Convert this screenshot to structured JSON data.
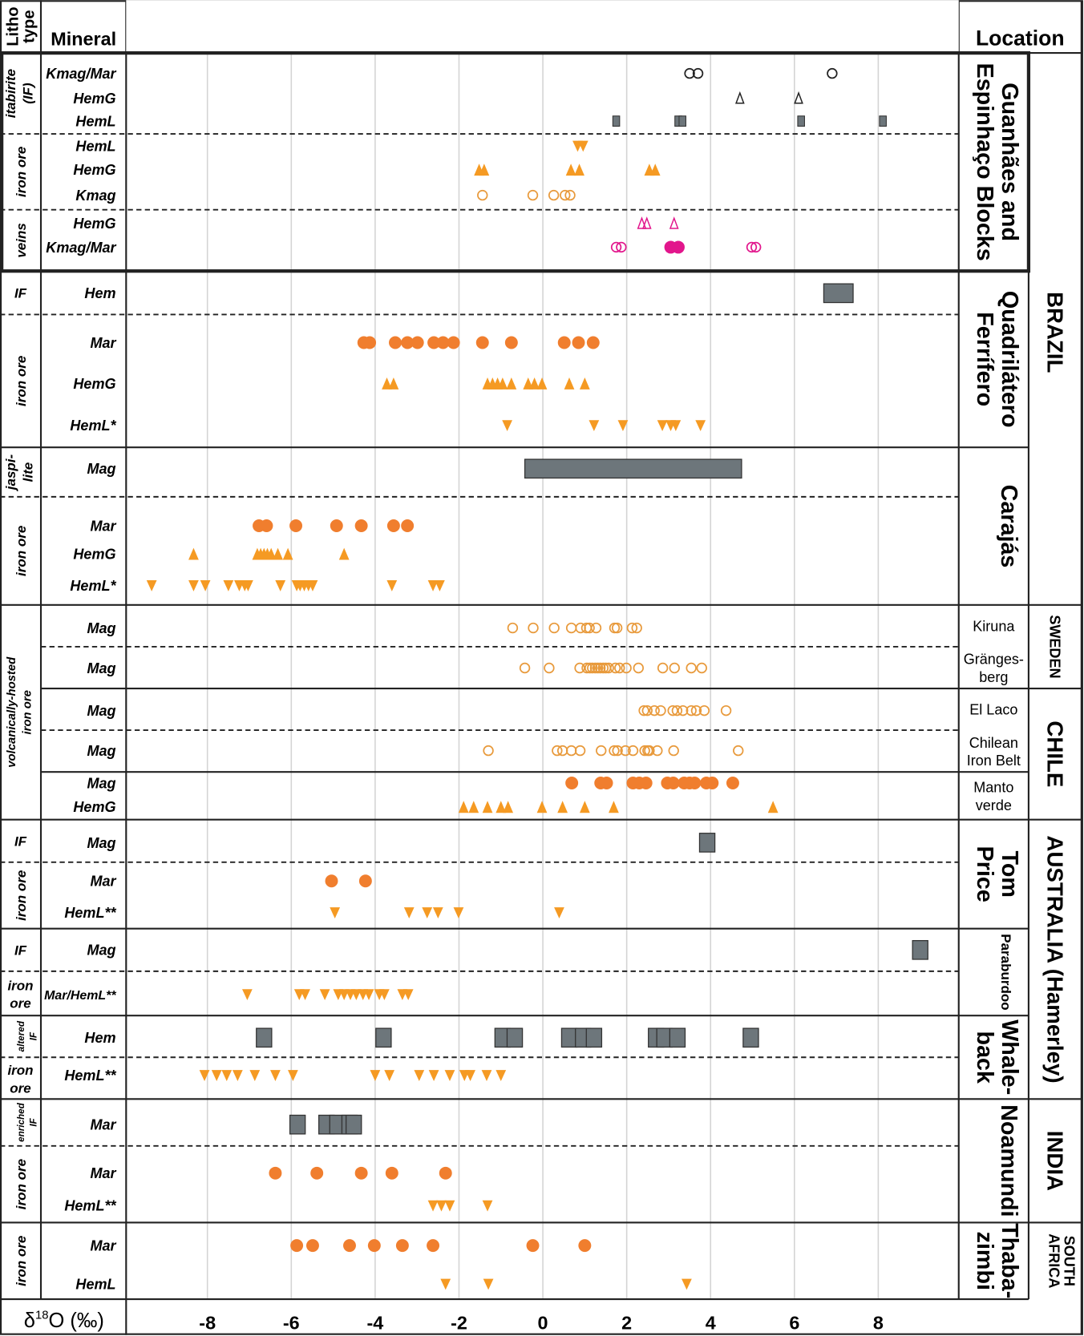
{
  "chart_data": {
    "type": "scatter",
    "title": "",
    "xlabel": "δ18O (‰)",
    "xlabel_parts": {
      "delta": "δ",
      "sup": "18",
      "rest": "O (‰)"
    },
    "xlim": [
      -10,
      10
    ],
    "xticks": [
      -8,
      -6,
      -4,
      -2,
      0,
      2,
      4,
      6,
      8
    ],
    "xtick_labels": [
      "-8",
      "-6",
      "-4",
      "-2",
      "0",
      "2",
      "4",
      "6",
      "8"
    ],
    "grid": "vertical",
    "legend": "none",
    "headers": {
      "litho": [
        "Litho",
        "type"
      ],
      "mineral": "Mineral",
      "location": "Location"
    },
    "colors": {
      "orange_circle": "#f07e2e",
      "orange_triangle": "#f59a23",
      "orange_open": "#e89a3c",
      "gray": "#6d767b",
      "magenta": "#e2168c",
      "black": "#222222"
    },
    "lithos": [
      {
        "label": [
          "itabirite",
          "(IF)"
        ],
        "rows": [
          {
            "mineral": "Kmag/Mar",
            "series": [
              {
                "marker": "circle-open",
                "color": "black",
                "values": [
                  3.5,
                  3.7,
                  6.9
                ]
              }
            ]
          },
          {
            "mineral": "HemG",
            "series": [
              {
                "marker": "triangle-up-open",
                "color": "black",
                "values": [
                  4.7,
                  6.1
                ]
              }
            ]
          },
          {
            "mineral": "HemL",
            "series": [
              {
                "marker": "rect-small",
                "color": "gray",
                "values": [
                  1.75,
                  3.23,
                  3.33,
                  6.16,
                  8.11
                ]
              }
            ]
          }
        ]
      },
      {
        "label": [
          "iron ore"
        ],
        "rows": [
          {
            "mineral": "HemL",
            "series": [
              {
                "marker": "triangle-down",
                "color": "orange_triangle",
                "values": [
                  0.83,
                  0.96
                ]
              }
            ]
          },
          {
            "mineral": "HemG",
            "series": [
              {
                "marker": "triangle-up",
                "color": "orange_triangle",
                "values": [
                  -1.52,
                  -1.4,
                  0.67,
                  0.87,
                  2.54,
                  2.68
                ]
              }
            ]
          },
          {
            "mineral": "Kmag",
            "series": [
              {
                "marker": "circle-open",
                "color": "orange_open",
                "values": [
                  -1.44,
                  -0.24,
                  0.26,
                  0.53,
                  0.65
                ]
              }
            ]
          }
        ]
      },
      {
        "label": [
          "veins"
        ],
        "rows": [
          {
            "mineral": "HemG",
            "series": [
              {
                "marker": "triangle-up-open",
                "color": "magenta",
                "values": [
                  2.36,
                  2.48,
                  3.13
                ]
              }
            ]
          },
          {
            "mineral": "Kmag/Mar",
            "series": [
              {
                "marker": "circle-open",
                "color": "magenta",
                "values": [
                  1.75,
                  1.87,
                  4.98,
                  5.08
                ]
              },
              {
                "marker": "circle-filled",
                "color": "magenta",
                "values": [
                  3.05,
                  3.23
                ]
              }
            ]
          }
        ]
      },
      {
        "label": [
          "IF"
        ],
        "rows": [
          {
            "mineral": "Hem",
            "series": [
              {
                "marker": "bar-range",
                "color": "gray",
                "ranges": [
                  [
                    6.7,
                    7.4
                  ]
                ]
              }
            ]
          }
        ]
      },
      {
        "label": [
          "iron ore"
        ],
        "rows": [
          {
            "mineral": "Mar",
            "series": [
              {
                "marker": "circle-filled",
                "color": "orange_circle",
                "values": [
                  -4.27,
                  -4.13,
                  -3.52,
                  -3.23,
                  -2.99,
                  -2.6,
                  -2.38,
                  -2.13,
                  -1.44,
                  -0.75,
                  0.51,
                  0.85,
                  1.2
                ]
              }
            ]
          },
          {
            "mineral": "HemG",
            "series": [
              {
                "marker": "triangle-up",
                "color": "orange_triangle",
                "values": [
                  -3.72,
                  -3.56,
                  -1.32,
                  -1.2,
                  -1.08,
                  -0.96,
                  -0.75,
                  -0.35,
                  -0.2,
                  -0.02,
                  0.63,
                  1.0
                ]
              }
            ]
          },
          {
            "mineral": "HemL*",
            "series": [
              {
                "marker": "triangle-down",
                "color": "orange_triangle",
                "values": [
                  -0.85,
                  1.22,
                  1.91,
                  2.85,
                  3.05,
                  3.17,
                  3.76
                ]
              }
            ]
          }
        ]
      },
      {
        "label": [
          "jaspi-",
          "lite"
        ],
        "rows": [
          {
            "mineral": "Mag",
            "series": [
              {
                "marker": "bar-range",
                "color": "gray",
                "ranges": [
                  [
                    -0.43,
                    4.74
                  ]
                ]
              }
            ]
          }
        ]
      },
      {
        "label": [
          "iron ore"
        ],
        "rows": [
          {
            "mineral": "Mar",
            "series": [
              {
                "marker": "circle-filled",
                "color": "orange_circle",
                "values": [
                  -6.77,
                  -6.59,
                  -5.89,
                  -4.92,
                  -4.33,
                  -3.56,
                  -3.23
                ]
              }
            ]
          },
          {
            "mineral": "HemG",
            "series": [
              {
                "marker": "triangle-up",
                "color": "orange_triangle",
                "values": [
                  -8.33,
                  -6.81,
                  -6.73,
                  -6.65,
                  -6.57,
                  -6.48,
                  -6.32,
                  -6.08,
                  -4.74
                ]
              }
            ]
          },
          {
            "mineral": "HemL*",
            "series": [
              {
                "marker": "triangle-down",
                "color": "orange_triangle",
                "values": [
                  -9.33,
                  -8.33,
                  -8.05,
                  -7.5,
                  -7.24,
                  -7.11,
                  -7.03,
                  -6.26,
                  -5.87,
                  -5.79,
                  -5.69,
                  -5.59,
                  -5.49,
                  -3.6,
                  -2.62,
                  -2.46
                ]
              }
            ]
          }
        ]
      },
      {
        "label": [
          "volcanically-hosted",
          "iron ore"
        ],
        "rows": [
          {
            "mineral": "Mag",
            "series": [
              {
                "marker": "circle-open",
                "color": "orange_open",
                "values": [
                  -0.72,
                  -0.23,
                  0.27,
                  0.68,
                  0.9,
                  1.04,
                  1.11,
                  1.27,
                  1.71,
                  1.77,
                  2.13,
                  2.24
                ]
              }
            ]
          },
          {
            "mineral": "Mag",
            "series": [
              {
                "marker": "circle-open",
                "color": "orange_open",
                "values": [
                  -0.43,
                  0.15,
                  0.88,
                  1.05,
                  1.12,
                  1.18,
                  1.25,
                  1.31,
                  1.37,
                  1.44,
                  1.5,
                  1.57,
                  1.73,
                  1.83,
                  1.99,
                  2.28,
                  2.86,
                  3.14,
                  3.54,
                  3.79
                ]
              }
            ]
          },
          {
            "mineral": "Mag",
            "series": [
              {
                "marker": "circle-open",
                "color": "orange_open",
                "values": [
                  2.41,
                  2.49,
                  2.66,
                  2.81,
                  3.1,
                  3.2,
                  3.34,
                  3.54,
                  3.66,
                  3.85,
                  4.37
                ]
              }
            ]
          },
          {
            "mineral": "Mag",
            "series": [
              {
                "marker": "circle-open",
                "color": "orange_open",
                "values": [
                  -1.3,
                  0.34,
                  0.47,
                  0.68,
                  0.89,
                  1.39,
                  1.7,
                  1.78,
                  1.97,
                  2.15,
                  2.43,
                  2.5,
                  2.54,
                  2.73,
                  3.12,
                  4.66
                ]
              }
            ]
          },
          {
            "mineral": "Mag",
            "series": [
              {
                "marker": "circle-filled",
                "color": "orange_circle",
                "values": [
                  0.69,
                  1.38,
                  1.52,
                  2.15,
                  2.3,
                  2.46,
                  2.97,
                  3.11,
                  3.37,
                  3.5,
                  3.62,
                  3.9,
                  4.04,
                  4.53
                ]
              }
            ]
          },
          {
            "mineral": "HemG",
            "series": [
              {
                "marker": "triangle-up",
                "color": "orange_triangle",
                "values": [
                  -1.89,
                  -1.65,
                  -1.32,
                  -1.0,
                  -0.83,
                  -0.02,
                  0.47,
                  1.0,
                  1.69,
                  5.49
                ]
              }
            ]
          }
        ]
      },
      {
        "label": [
          "IF"
        ],
        "rows": [
          {
            "mineral": "Mag",
            "series": [
              {
                "marker": "rect-large",
                "color": "gray",
                "values": [
                  3.92
                ]
              }
            ]
          }
        ]
      },
      {
        "label": [
          "iron ore"
        ],
        "rows": [
          {
            "mineral": "Mar",
            "series": [
              {
                "marker": "circle-filled",
                "color": "orange_circle",
                "values": [
                  -5.04,
                  -4.23
                ]
              }
            ]
          },
          {
            "mineral": "HemL**",
            "series": [
              {
                "marker": "triangle-down",
                "color": "orange_triangle",
                "values": [
                  -4.96,
                  -3.19,
                  -2.76,
                  -2.5,
                  -2.01,
                  0.39
                ]
              }
            ]
          }
        ]
      },
      {
        "label": [
          "IF"
        ],
        "rows": [
          {
            "mineral": "Mag",
            "series": [
              {
                "marker": "rect-large",
                "color": "gray",
                "values": [
                  9.0
                ]
              }
            ]
          }
        ]
      },
      {
        "label": [
          "iron",
          "ore"
        ],
        "rows": [
          {
            "mineral": "Mar/HemL**",
            "series": [
              {
                "marker": "triangle-down",
                "color": "orange_triangle",
                "values": [
                  -7.05,
                  -5.81,
                  -5.67,
                  -5.2,
                  -4.88,
                  -4.74,
                  -4.59,
                  -4.45,
                  -4.29,
                  -4.15,
                  -3.9,
                  -3.78,
                  -3.35,
                  -3.21
                ]
              }
            ]
          }
        ]
      },
      {
        "label": [
          "altered",
          "IF"
        ],
        "rows": [
          {
            "mineral": "Hem",
            "series": [
              {
                "marker": "rect-large",
                "color": "gray",
                "values": [
                  -6.65,
                  -3.8,
                  -0.96,
                  -0.67,
                  0.63,
                  0.96,
                  1.22,
                  2.7,
                  2.9,
                  3.21,
                  4.96
                ]
              }
            ]
          }
        ]
      },
      {
        "label": [
          "iron",
          "ore"
        ],
        "rows": [
          {
            "mineral": "HemL**",
            "series": [
              {
                "marker": "triangle-down",
                "color": "orange_triangle",
                "values": [
                  -8.07,
                  -7.78,
                  -7.54,
                  -7.28,
                  -6.87,
                  -6.38,
                  -5.96,
                  -4.0,
                  -3.66,
                  -2.95,
                  -2.6,
                  -2.22,
                  -1.87,
                  -1.73,
                  -1.34,
                  -1.0
                ]
              }
            ]
          }
        ]
      },
      {
        "label": [
          "enriched",
          "IF"
        ],
        "rows": [
          {
            "mineral": "Mar",
            "series": [
              {
                "marker": "rect-large",
                "color": "gray",
                "values": [
                  -5.85,
                  -5.16,
                  -4.9,
                  -4.61,
                  -4.51
                ]
              }
            ]
          }
        ]
      },
      {
        "label": [
          "iron ore"
        ],
        "rows": [
          {
            "mineral": "Mar",
            "series": [
              {
                "marker": "circle-filled",
                "color": "orange_circle",
                "values": [
                  -6.38,
                  -5.39,
                  -4.33,
                  -3.6,
                  -2.32
                ]
              }
            ]
          },
          {
            "mineral": "HemL**",
            "series": [
              {
                "marker": "triangle-down",
                "color": "orange_triangle",
                "values": [
                  -2.62,
                  -2.42,
                  -2.22,
                  -1.32
                ]
              }
            ]
          }
        ]
      },
      {
        "label": [
          "iron ore"
        ],
        "rows": [
          {
            "mineral": "Mar",
            "series": [
              {
                "marker": "circle-filled",
                "color": "orange_circle",
                "values": [
                  -5.87,
                  -5.49,
                  -4.61,
                  -4.02,
                  -3.35,
                  -2.62,
                  -0.24,
                  1.0
                ]
              }
            ]
          },
          {
            "mineral": "HemL",
            "series": [
              {
                "marker": "triangle-down",
                "color": "orange_triangle",
                "values": [
                  -2.32,
                  -1.3,
                  3.43
                ]
              }
            ]
          }
        ]
      }
    ],
    "locations": [
      {
        "lines": [
          "Guanhães and",
          "Espinhaço Blocks"
        ]
      },
      {
        "lines": [
          "Quadrilátero",
          "Ferrífero"
        ]
      },
      {
        "lines": [
          "Carajás"
        ]
      },
      {
        "lines": [
          "Kiruna"
        ]
      },
      {
        "lines": [
          "Gränges-",
          "berg"
        ]
      },
      {
        "lines": [
          "El Laco"
        ]
      },
      {
        "lines": [
          "Chilean",
          "Iron Belt"
        ]
      },
      {
        "lines": [
          "Manto",
          "verde"
        ]
      },
      {
        "lines": [
          "Tom",
          "Price"
        ]
      },
      {
        "lines": [
          "Paraburdoo"
        ]
      },
      {
        "lines": [
          "Whale-",
          "back"
        ]
      },
      {
        "lines": [
          "Noamundi"
        ]
      },
      {
        "lines": [
          "Thaba-",
          "zimbi"
        ]
      }
    ],
    "countries": [
      {
        "lines": [
          "BRAZIL"
        ]
      },
      {
        "lines": [
          "SWEDEN"
        ]
      },
      {
        "lines": [
          "CHILE"
        ]
      },
      {
        "lines": [
          "AUSTRALIA (Hamerley)"
        ]
      },
      {
        "lines": [
          "INDIA"
        ]
      },
      {
        "lines": [
          "SOUTH",
          "AFRICA"
        ]
      }
    ]
  }
}
